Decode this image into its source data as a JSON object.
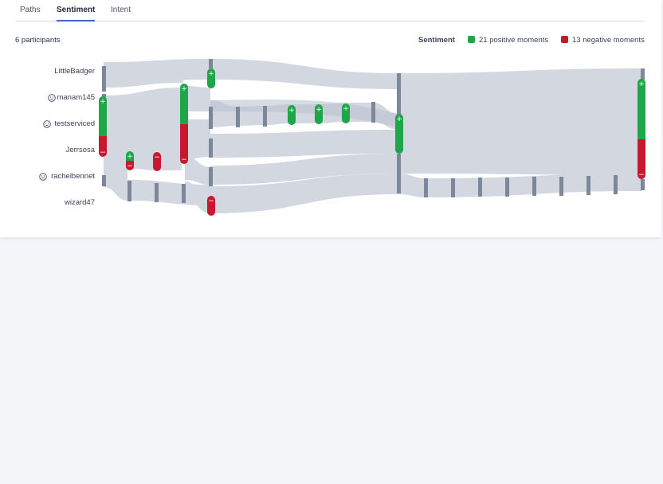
{
  "tabs": [
    {
      "label": "Paths"
    },
    {
      "label": "Sentiment"
    },
    {
      "label": "Intent"
    }
  ],
  "participants_count": "6 participants",
  "legend": {
    "title": "Sentiment",
    "positive": {
      "label": "21 positive moments",
      "color": "#1ea64a"
    },
    "negative": {
      "label": "13 negative moments",
      "color": "#c8182f"
    }
  },
  "participants": [
    {
      "name": "LittleBadger",
      "icon": "none"
    },
    {
      "name": "manam145",
      "icon": "smile-face-icon"
    },
    {
      "name": "testserviced",
      "icon": "frown-face-icon"
    },
    {
      "name": "Jerrsosa",
      "icon": "none"
    },
    {
      "name": "rachelbennet",
      "icon": "frown-face-icon"
    },
    {
      "name": "wizard47",
      "icon": "none"
    }
  ],
  "colors": {
    "flow": "#d3d8e0",
    "node": "#7c879a",
    "positive": "#1ea64a",
    "negative": "#c8182f"
  },
  "signs": {
    "positive": "+",
    "negative": "−"
  }
}
